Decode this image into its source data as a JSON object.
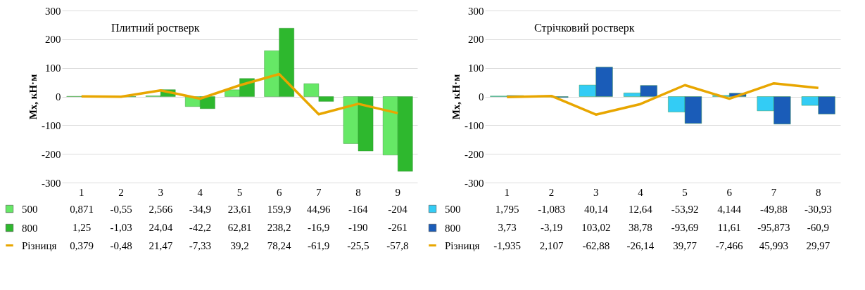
{
  "chart_data": [
    {
      "type": "bar",
      "title": "Плитний ростверк",
      "ylabel": "Mx, кН·м",
      "categories": [
        "1",
        "2",
        "3",
        "4",
        "5",
        "6",
        "7",
        "8",
        "9"
      ],
      "ylim": [
        -300,
        300
      ],
      "yticks": [
        -300,
        -200,
        -100,
        0,
        100,
        200,
        300
      ],
      "grid": "y",
      "legend": "bottom",
      "series": [
        {
          "name": "500",
          "color": "#66e866",
          "values": [
            0.871,
            -0.55,
            2.566,
            -34.9,
            23.61,
            159.9,
            44.96,
            -164,
            -204
          ],
          "value_labels": [
            "0,871",
            "-0,55",
            "2,566",
            "-34,9",
            "23,61",
            "159,9",
            "44,96",
            "-164",
            "-204"
          ]
        },
        {
          "name": "800",
          "color": "#2eb82e",
          "values": [
            1.25,
            -1.03,
            24.04,
            -42.2,
            62.81,
            238.2,
            -16.9,
            -190,
            -261
          ],
          "value_labels": [
            "1,25",
            "-1,03",
            "24,04",
            "-42,2",
            "62,81",
            "238,2",
            "-16,9",
            "-190",
            "-261"
          ]
        },
        {
          "name": "Різниця",
          "type": "line",
          "color": "#e8a600",
          "values": [
            0.379,
            -0.48,
            21.47,
            -7.33,
            39.2,
            78.24,
            -61.9,
            -25.5,
            -57.8
          ],
          "value_labels": [
            "0,379",
            "-0,48",
            "21,47",
            "-7,33",
            "39,2",
            "78,24",
            "-61,9",
            "-25,5",
            "-57,8"
          ]
        }
      ]
    },
    {
      "type": "bar",
      "title": "Стрічковий ростверк",
      "ylabel": "Mx, кН·м",
      "categories": [
        "1",
        "2",
        "3",
        "4",
        "5",
        "6",
        "7",
        "8"
      ],
      "ylim": [
        -300,
        300
      ],
      "yticks": [
        -300,
        -200,
        -100,
        0,
        100,
        200,
        300
      ],
      "grid": "y",
      "legend": "bottom",
      "series": [
        {
          "name": "500",
          "color": "#33ccf5",
          "values": [
            1.795,
            -1.083,
            40.14,
            12.64,
            -53.92,
            4.144,
            -49.88,
            -30.93
          ],
          "value_labels": [
            "1,795",
            "-1,083",
            "40,14",
            "12,64",
            "-53,92",
            "4,144",
            "-49,88",
            "-30,93"
          ]
        },
        {
          "name": "800",
          "color": "#1a5cb8",
          "values": [
            3.73,
            -3.19,
            103.02,
            38.78,
            -93.69,
            11.61,
            -95.873,
            -60.9
          ],
          "value_labels": [
            "3,73",
            "-3,19",
            "103,02",
            "38,78",
            "-93,69",
            "11,61",
            "-95,873",
            "-60,9"
          ]
        },
        {
          "name": "Різниця",
          "type": "line",
          "color": "#e8a600",
          "values": [
            -1.935,
            2.107,
            -62.88,
            -26.14,
            39.77,
            -7.466,
            45.993,
            29.97
          ],
          "value_labels": [
            "-1,935",
            "2,107",
            "-62,88",
            "-26,14",
            "39,77",
            "-7,466",
            "45,993",
            "29,97"
          ]
        }
      ]
    }
  ]
}
